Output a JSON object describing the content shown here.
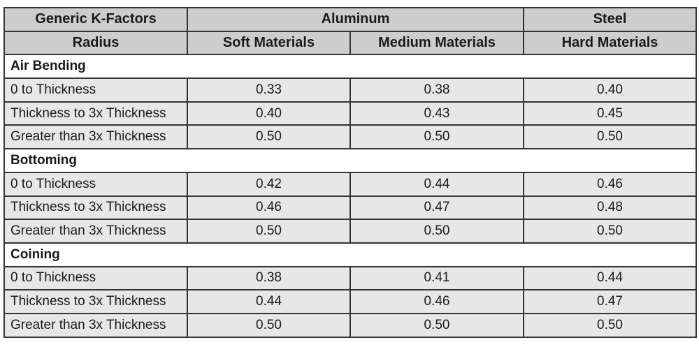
{
  "table": {
    "header": [
      [
        "Generic K-Factors",
        "Aluminum",
        "Steel"
      ],
      [
        "Radius",
        "Soft Materials",
        "Medium Materials",
        "Hard Materials"
      ]
    ],
    "sections": [
      {
        "title": "Air Bending",
        "rows": [
          [
            "0 to Thickness",
            "0.33",
            "0.38",
            "0.40"
          ],
          [
            "Thickness to 3x Thickness",
            "0.40",
            "0.43",
            "0.45"
          ],
          [
            "Greater than 3x Thickness",
            "0.50",
            "0.50",
            "0.50"
          ]
        ]
      },
      {
        "title": "Bottoming",
        "rows": [
          [
            "0 to Thickness",
            "0.42",
            "0.44",
            "0.46"
          ],
          [
            "Thickness to 3x Thickness",
            "0.46",
            "0.47",
            "0.48"
          ],
          [
            "Greater than 3x Thickness",
            "0.50",
            "0.50",
            "0.50"
          ]
        ]
      },
      {
        "title": "Coining",
        "rows": [
          [
            "0 to Thickness",
            "0.38",
            "0.41",
            "0.44"
          ],
          [
            "Thickness to 3x Thickness",
            "0.44",
            "0.46",
            "0.47"
          ],
          [
            "Greater than 3x Thickness",
            "0.50",
            "0.50",
            "0.50"
          ]
        ]
      }
    ]
  }
}
